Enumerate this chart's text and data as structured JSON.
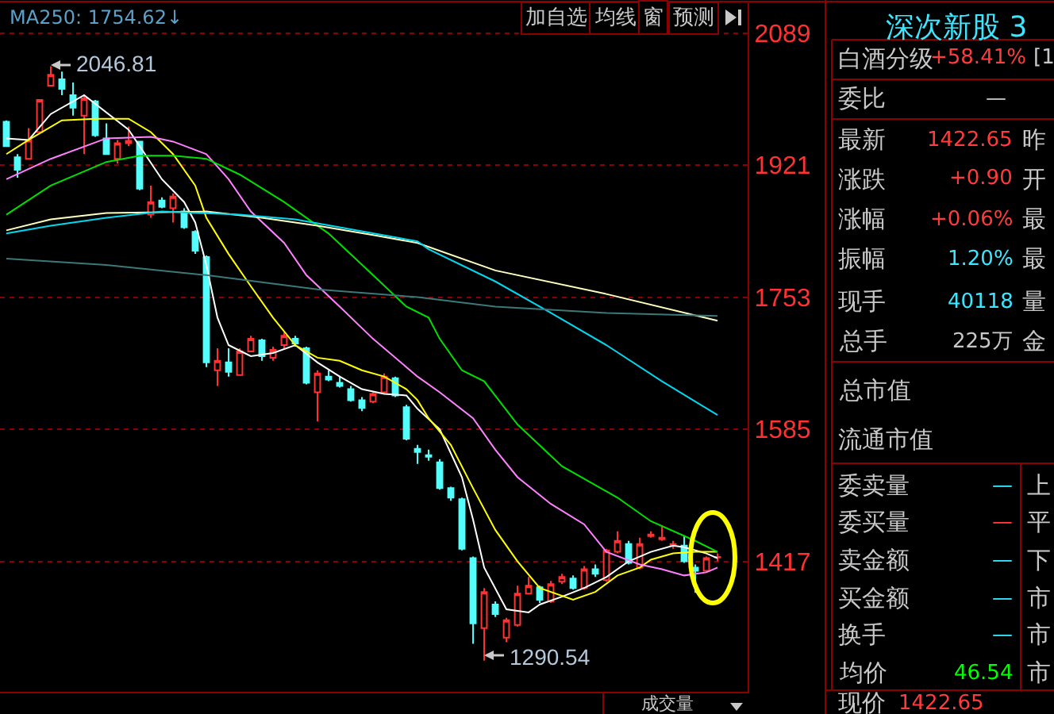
{
  "chart_data": {
    "type": "candlestick",
    "categories": [
      null,
      null,
      null,
      null,
      null,
      null,
      null,
      null,
      null,
      null,
      null,
      null,
      null,
      null,
      null,
      null,
      null,
      null,
      null,
      null,
      null,
      null,
      null,
      null,
      null,
      null,
      null,
      null,
      null,
      null,
      null,
      null,
      null,
      null,
      null,
      null,
      null,
      null,
      null,
      null,
      null,
      null,
      null,
      null,
      null,
      null,
      null,
      null,
      null,
      null,
      null,
      null,
      null,
      null,
      null,
      null,
      null,
      null,
      null,
      null,
      null,
      null,
      null,
      null,
      null
    ],
    "ohlc": [
      [
        1976,
        1978,
        1945,
        1945
      ],
      [
        1931,
        1935,
        1905,
        1915
      ],
      [
        1929,
        1968,
        1929,
        1953
      ],
      [
        1963,
        2004,
        1963,
        2004
      ],
      [
        2022,
        2046.81,
        2022,
        2036
      ],
      [
        2030,
        2040,
        2010,
        2018
      ],
      [
        2010,
        2026,
        1984,
        1994
      ],
      [
        1984,
        2010,
        1935,
        2006
      ],
      [
        2002,
        2004,
        1957,
        1959
      ],
      [
        1955,
        1974,
        1935,
        1935
      ],
      [
        1929,
        1953,
        1923,
        1949
      ],
      [
        1949,
        1970,
        1945,
        1952
      ],
      [
        1951,
        1951,
        1889,
        1891
      ],
      [
        1858,
        1895,
        1854,
        1874
      ],
      [
        1876,
        1880,
        1866,
        1868
      ],
      [
        1866,
        1885,
        1848,
        1881
      ],
      [
        1862,
        1866,
        1840,
        1842
      ],
      [
        1836,
        1838,
        1808,
        1812
      ],
      [
        1804,
        1806,
        1664,
        1670
      ],
      [
        1660,
        1688,
        1640,
        1672
      ],
      [
        1670,
        1688,
        1652,
        1658
      ],
      [
        1654,
        1688,
        1654,
        1684
      ],
      [
        1684,
        1704,
        1684,
        1700
      ],
      [
        1698,
        1700,
        1672,
        1678
      ],
      [
        1676,
        1690,
        1672,
        1686
      ],
      [
        1692,
        1708,
        1686,
        1704
      ],
      [
        1700,
        1704,
        1690,
        1694
      ],
      [
        1688,
        1690,
        1642,
        1644
      ],
      [
        1632,
        1660,
        1595,
        1656
      ],
      [
        1652,
        1660,
        1646,
        1648
      ],
      [
        1644,
        1653,
        1638,
        1640
      ],
      [
        1636,
        1640,
        1620,
        1622
      ],
      [
        1622,
        1626,
        1608,
        1612
      ],
      [
        1620,
        1632,
        1618,
        1630
      ],
      [
        1632,
        1656,
        1630,
        1652
      ],
      [
        1650,
        1652,
        1626,
        1628
      ],
      [
        1613,
        1616,
        1571,
        1573
      ],
      [
        1560,
        1565,
        1541,
        1556
      ],
      [
        1552,
        1559,
        1545,
        1550
      ],
      [
        1543,
        1547,
        1508,
        1510
      ],
      [
        1510,
        1512,
        1494,
        1498
      ],
      [
        1496,
        1498,
        1431,
        1433
      ],
      [
        1421,
        1423,
        1312,
        1338
      ],
      [
        1332,
        1383,
        1290.54,
        1378
      ],
      [
        1362,
        1366,
        1346,
        1350
      ],
      [
        1320,
        1345,
        1314,
        1342
      ],
      [
        1336,
        1386,
        1334,
        1376
      ],
      [
        1376,
        1397,
        1376,
        1386
      ],
      [
        1384,
        1386,
        1364,
        1368
      ],
      [
        1366,
        1392,
        1364,
        1388
      ],
      [
        1391,
        1401,
        1388,
        1397
      ],
      [
        1395,
        1399,
        1381,
        1383
      ],
      [
        1383,
        1411,
        1381,
        1407
      ],
      [
        1407,
        1413,
        1397,
        1401
      ],
      [
        1393,
        1433,
        1391,
        1431
      ],
      [
        1429,
        1455,
        1427,
        1443
      ],
      [
        1439,
        1443,
        1413,
        1415
      ],
      [
        1409,
        1447,
        1407,
        1439
      ],
      [
        1449,
        1455,
        1447,
        1451
      ],
      [
        1445,
        1463,
        1443,
        1447
      ],
      [
        1437,
        1443,
        1433,
        1439
      ],
      [
        1437,
        1449,
        1415,
        1417
      ],
      [
        1409,
        1413,
        1377,
        1405
      ],
      [
        1405,
        1423,
        1403,
        1421
      ],
      [
        1421.75,
        1427,
        1417,
        1422.65
      ]
    ],
    "colors": [
      "#54fcfc",
      "#54fcfc",
      "#ff3232",
      "#ff3232",
      "#ff3232",
      "#54fcfc",
      "#54fcfc",
      "#ff3232",
      "#54fcfc",
      "#54fcfc",
      "#ff3232",
      "#ff3232",
      "#54fcfc",
      "#ff3232",
      "#54fcfc",
      "#ff3232",
      "#54fcfc",
      "#54fcfc",
      "#54fcfc",
      "#ff3232",
      "#54fcfc",
      "#ff3232",
      "#ff3232",
      "#54fcfc",
      "#ff3232",
      "#ff3232",
      "#54fcfc",
      "#54fcfc",
      "#ff3232",
      "#54fcfc",
      "#54fcfc",
      "#54fcfc",
      "#54fcfc",
      "#ff3232",
      "#ff3232",
      "#54fcfc",
      "#54fcfc",
      "#54fcfc",
      "#54fcfc",
      "#54fcfc",
      "#54fcfc",
      "#54fcfc",
      "#54fcfc",
      "#ff3232",
      "#54fcfc",
      "#ff3232",
      "#ff3232",
      "#ff3232",
      "#54fcfc",
      "#ff3232",
      "#ff3232",
      "#54fcfc",
      "#ff3232",
      "#54fcfc",
      "#ff3232",
      "#ff3232",
      "#54fcfc",
      "#ff3232",
      "#ff3232",
      "#ff3232",
      "#ff3232",
      "#54fcfc",
      "#54fcfc",
      "#ff3232",
      "#ff3232"
    ],
    "series": [
      {
        "type": "line",
        "color": "#ffffff",
        "values": [
          1955,
          null,
          1953,
          null,
          1986,
          null,
          null,
          2010,
          null,
          null,
          null,
          1966,
          null,
          null,
          1903,
          null,
          1874,
          1848,
          1794,
          1727,
          1692,
          null,
          1678,
          null,
          1682,
          null,
          1692,
          null,
          1670,
          null,
          1652,
          null,
          1636,
          null,
          1630,
          null,
          1628,
          1611,
          null,
          1585,
          null,
          1524,
          1470,
          1409,
          null,
          1356,
          null,
          1352,
          1362,
          null,
          1372,
          null,
          1383,
          null,
          1397,
          null,
          1417,
          null,
          1429,
          null,
          1437,
          1435,
          null,
          1427,
          1421
        ]
      },
      {
        "type": "line",
        "color": "#ffff00",
        "values": [
          1935,
          null,
          1953,
          null,
          null,
          1978,
          null,
          null,
          1980,
          null,
          null,
          1980,
          null,
          1963,
          null,
          1935,
          null,
          1895,
          1854,
          null,
          1808,
          null,
          1767,
          null,
          1727,
          null,
          1692,
          null,
          1676,
          null,
          1672,
          null,
          1660,
          null,
          1652,
          null,
          1636,
          1622,
          1599,
          null,
          1565,
          null,
          1510,
          null,
          1457,
          null,
          1417,
          null,
          1383,
          null,
          null,
          1368,
          null,
          1378,
          null,
          1399,
          null,
          1409,
          1419,
          null,
          1427,
          null,
          1429,
          null,
          1429
        ]
      },
      {
        "type": "line",
        "color": "#ff80ff",
        "values": [
          1903,
          null,
          null,
          null,
          1929,
          null,
          null,
          null,
          null,
          1955,
          null,
          null,
          null,
          1957,
          null,
          1951,
          null,
          null,
          1935,
          null,
          1903,
          null,
          1862,
          null,
          null,
          1822,
          null,
          1781,
          null,
          null,
          1741,
          null,
          null,
          1700,
          null,
          null,
          null,
          1652,
          null,
          1632,
          null,
          null,
          1599,
          null,
          1559,
          null,
          1524,
          null,
          null,
          1490,
          null,
          null,
          1464,
          null,
          1429,
          null,
          null,
          1413,
          null,
          1407,
          null,
          1399,
          null,
          1403,
          1409
        ]
      },
      {
        "type": "line",
        "color": "#00e000",
        "values": [
          1858,
          null,
          null,
          null,
          1895,
          null,
          null,
          null,
          null,
          1925,
          null,
          null,
          1933,
          null,
          null,
          1933,
          null,
          null,
          1929,
          null,
          null,
          1909,
          null,
          null,
          null,
          1874,
          null,
          null,
          null,
          1834,
          null,
          null,
          null,
          1781,
          null,
          null,
          1741,
          null,
          1727,
          1700,
          null,
          1660,
          null,
          1646,
          null,
          null,
          1591,
          null,
          null,
          null,
          1538,
          null,
          null,
          null,
          null,
          1498,
          null,
          null,
          1468,
          null,
          null,
          null,
          1443,
          null,
          1429
        ]
      },
      {
        "type": "line",
        "color": "#ffffc0",
        "values": [
          1838,
          null,
          null,
          null,
          1852,
          null,
          null,
          null,
          null,
          1860,
          null,
          null,
          null,
          null,
          null,
          null,
          null,
          null,
          1862,
          null,
          null,
          null,
          null,
          1854,
          null,
          null,
          null,
          null,
          1844,
          null,
          null,
          null,
          null,
          1832,
          null,
          null,
          null,
          1822,
          null,
          null,
          null,
          null,
          null,
          null,
          1787,
          null,
          null,
          null,
          null,
          null,
          null,
          null,
          null,
          null,
          1757,
          null,
          null,
          null,
          null,
          null,
          null,
          null,
          null,
          null,
          1723
        ]
      },
      {
        "type": "line",
        "color": "#00d8f0",
        "values": [
          1834,
          null,
          null,
          null,
          1844,
          null,
          null,
          null,
          null,
          1854,
          null,
          null,
          null,
          null,
          1862,
          null,
          null,
          null,
          null,
          null,
          null,
          1858,
          null,
          null,
          null,
          null,
          1852,
          null,
          null,
          null,
          1842,
          null,
          null,
          null,
          null,
          null,
          null,
          1824,
          1814,
          null,
          null,
          null,
          null,
          null,
          1773,
          null,
          null,
          null,
          null,
          1733,
          null,
          null,
          null,
          null,
          1692,
          null,
          null,
          null,
          null,
          1646,
          null,
          null,
          null,
          null,
          1603
        ]
      },
      {
        "type": "line",
        "color": "#3c7878",
        "values": [
          1802,
          null,
          null,
          null,
          null,
          null,
          null,
          null,
          null,
          1794,
          null,
          null,
          null,
          null,
          null,
          null,
          null,
          null,
          1781,
          null,
          null,
          null,
          null,
          null,
          null,
          null,
          null,
          null,
          1763,
          null,
          null,
          null,
          null,
          null,
          null,
          null,
          null,
          1753,
          null,
          null,
          null,
          null,
          null,
          null,
          1741,
          null,
          null,
          null,
          null,
          null,
          null,
          null,
          null,
          null,
          1733,
          null,
          null,
          null,
          null,
          null,
          null,
          null,
          null,
          null,
          1729
        ]
      }
    ],
    "ylim": [
      1251,
      2127
    ],
    "yticks": [
      2089,
      1921,
      1753,
      1585,
      1417
    ],
    "grid": "y",
    "tick_labels": "y",
    "annotations": [
      "MA250: 1754.62↓",
      "2046.81",
      "1290.54",
      "加自选",
      "均线",
      "窗",
      "预测",
      "成交量",
      "深次新股 3",
      "白酒分级",
      "+58.41%",
      "[1",
      "委比",
      "—",
      "最新",
      "1422.65",
      "昨",
      "涨跌",
      "+0.90",
      "开",
      "涨幅",
      "+0.06%",
      "最",
      "振幅",
      "1.20%",
      "最",
      "现手",
      "40118",
      "量",
      "总手",
      "225万",
      "金",
      "总市值",
      "流通市值",
      "委卖量",
      "—",
      "上",
      "委买量",
      "—",
      "平",
      "卖金额",
      "—",
      "下",
      "买金额",
      "—",
      "市",
      "换手",
      "—",
      "市",
      "均价",
      "46.54",
      "市",
      "现价",
      "1422.65"
    ]
  }
}
